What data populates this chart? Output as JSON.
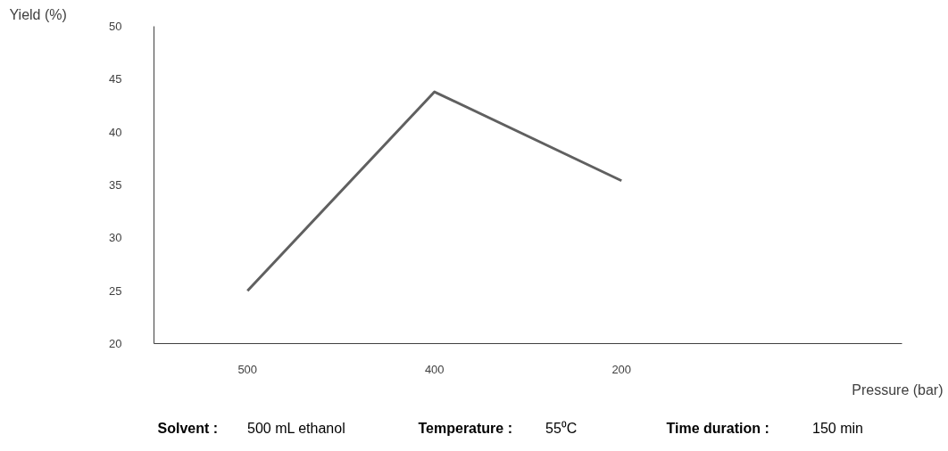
{
  "chart_data": {
    "type": "line",
    "categories": [
      "500",
      "400",
      "200",
      null
    ],
    "series": [
      {
        "color": "#606060",
        "values": [
          25,
          43.8,
          35.4,
          null
        ]
      }
    ],
    "ylim": [
      20,
      50
    ],
    "yticks": [
      20,
      25,
      30,
      35,
      40,
      45,
      50
    ],
    "xlabel": "Pressure (bar)",
    "ylabel": "Yield (%)",
    "grid": false,
    "marker": "none",
    "line_style": "solid",
    "annotations": [
      "Solvent : 500 mL ethanol",
      "Temperature : 55⁰C",
      "Time duration : 150 min"
    ]
  }
}
